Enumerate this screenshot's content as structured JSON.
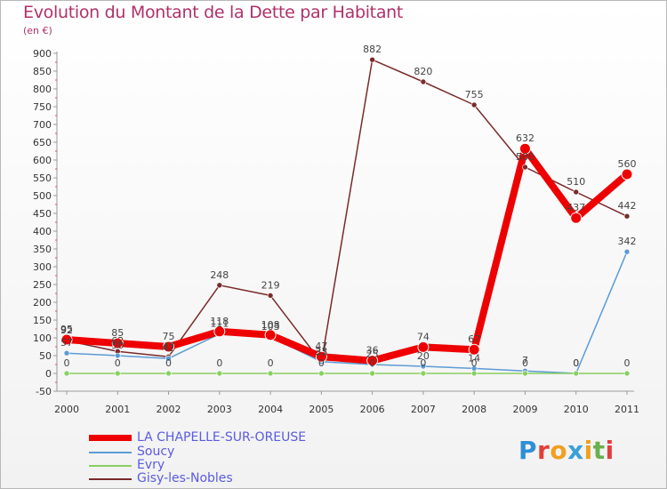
{
  "header": {
    "title": "Evolution du Montant de la Dette par Habitant",
    "unit": "(en €)"
  },
  "logo_text": "Proxiti",
  "logo_colors": [
    "#2e8fd8",
    "#e0403c",
    "#f0a020",
    "#3aa0d8",
    "#f0a020",
    "#6ab04c",
    "#e0403c"
  ],
  "chart_data": {
    "type": "line",
    "title": "Evolution du Montant de la Dette par Habitant",
    "subtitle": "(en €)",
    "x": [
      "2000",
      "2001",
      "2002",
      "2003",
      "2004",
      "2005",
      "2006",
      "2007",
      "2008",
      "2009",
      "2010",
      "2011"
    ],
    "ylim": [
      -50,
      900
    ],
    "yticks": [
      -50,
      0,
      50,
      100,
      150,
      200,
      250,
      300,
      350,
      400,
      450,
      500,
      550,
      600,
      650,
      700,
      750,
      800,
      850,
      900
    ],
    "grid": false,
    "legend_position": "bottom-left",
    "series": [
      {
        "name": "LA CHAPELLE-SUR-OREUSE",
        "color": "#ee0000",
        "width": 8,
        "values": [
          95,
          85,
          75,
          118,
          108,
          47,
          36,
          74,
          67,
          632,
          437,
          560
        ],
        "labels": [
          "95",
          "85",
          "75",
          "118",
          "108",
          "47",
          "36",
          "74",
          "67",
          "632",
          "437",
          "560"
        ]
      },
      {
        "name": "Soucy",
        "color": "#5b9bd5",
        "width": 1.5,
        "values": [
          57,
          50,
          42,
          111,
          103,
          33,
          25,
          20,
          14,
          7,
          0,
          342
        ],
        "labels": [
          "57",
          "50",
          "42",
          "111",
          "103",
          "33",
          "25",
          "20",
          "14",
          "7",
          "0",
          "342"
        ]
      },
      {
        "name": "Evry",
        "color": "#88d060",
        "width": 1.5,
        "values": [
          0,
          0,
          0,
          0,
          0,
          0,
          0,
          0,
          0,
          0,
          0,
          0
        ],
        "labels": [
          "0",
          "0",
          "0",
          "0",
          "0",
          "0",
          "0",
          "0",
          "0",
          "0",
          "0",
          "0"
        ]
      },
      {
        "name": "Gisy-les-Nobles",
        "color": "#7a2a2a",
        "width": 1.5,
        "values": [
          92,
          62,
          47,
          248,
          219,
          31,
          882,
          820,
          755,
          580,
          510,
          442
        ],
        "labels": [
          "92",
          "62",
          "47",
          "248",
          "219",
          "31",
          "882",
          "820",
          "755",
          "580",
          "510",
          "442"
        ]
      }
    ]
  }
}
